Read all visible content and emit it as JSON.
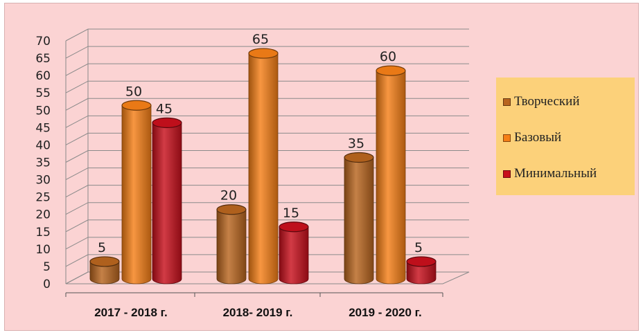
{
  "chart_data": {
    "type": "bar",
    "subtype": "3d-cylinder",
    "categories": [
      "2017 - 2018 г.",
      "2018- 2019 г.",
      "2019 - 2020 г."
    ],
    "series": [
      {
        "name": "Творческий",
        "values": [
          5,
          20,
          35
        ],
        "color": "#b8651f"
      },
      {
        "name": "Базовый",
        "values": [
          50,
          65,
          60
        ],
        "color": "#f57f17"
      },
      {
        "name": "Минимальный",
        "values": [
          45,
          15,
          5
        ],
        "color": "#c8101c"
      }
    ],
    "ylim": [
      0,
      70
    ],
    "yticks": [
      0,
      5,
      10,
      15,
      20,
      25,
      30,
      35,
      40,
      45,
      50,
      55,
      60,
      65,
      70
    ],
    "title": "",
    "xlabel": "",
    "ylabel": "",
    "grid": true,
    "legend_position": "right"
  },
  "legend": {
    "items": [
      "Творческий",
      "Базовый",
      "Минимальный"
    ]
  },
  "colors": {
    "background": "#fbd3d3",
    "legend_background": "#fcd17a",
    "gridline": "#8a8a8a"
  }
}
